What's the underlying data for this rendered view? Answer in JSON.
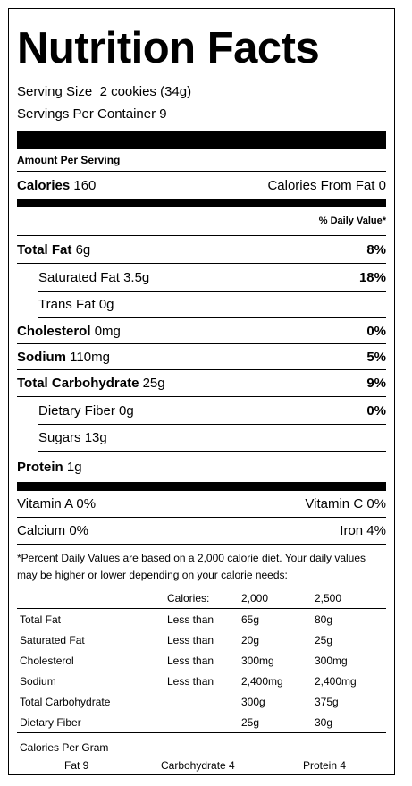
{
  "title": "Nutrition Facts",
  "serving_size_label": "Serving Size",
  "serving_size_value": "2 cookies (34g)",
  "servings_label": "Servings Per Container",
  "servings_value": "9",
  "amount_per_serving": "Amount Per Serving",
  "calories_label": "Calories",
  "calories_value": "160",
  "calories_from_fat_label": "Calories From Fat",
  "calories_from_fat_value": "0",
  "daily_value_header": "% Daily Value*",
  "nutrients": [
    {
      "label": "Total Fat",
      "amount": "6g",
      "dv": "8%"
    },
    {
      "label": "Saturated Fat",
      "amount": "3.5g",
      "dv": "18%"
    },
    {
      "label": "Trans Fat",
      "amount": "0g",
      "dv": ""
    },
    {
      "label": "Cholesterol",
      "amount": "0mg",
      "dv": "0%"
    },
    {
      "label": "Sodium",
      "amount": "110mg",
      "dv": "5%"
    },
    {
      "label": "Total Carbohydrate",
      "amount": "25g",
      "dv": "9%"
    },
    {
      "label": "Dietary Fiber",
      "amount": "0g",
      "dv": "0%"
    },
    {
      "label": "Sugars",
      "amount": "13g",
      "dv": ""
    },
    {
      "label": "Protein",
      "amount": "1g",
      "dv": ""
    }
  ],
  "vitamins": [
    {
      "left": "Vitamin A 0%",
      "right": "Vitamin C 0%"
    },
    {
      "left": "Calcium 0%",
      "right": "Iron 4%"
    }
  ],
  "footnote": "*Percent Daily Values are based on a 2,000 calorie diet. Your daily values may be higher or lower depending on your calorie needs:",
  "footnote_table": {
    "header": [
      "",
      "Calories:",
      "2,000",
      "2,500"
    ],
    "rows": [
      [
        "Total Fat",
        "Less than",
        "65g",
        "80g"
      ],
      [
        "Saturated Fat",
        "Less than",
        "20g",
        "25g"
      ],
      [
        "Cholesterol",
        "Less than",
        "300mg",
        "300mg"
      ],
      [
        "Sodium",
        "Less than",
        "2,400mg",
        "2,400mg"
      ],
      [
        "Total Carbohydrate",
        "",
        "300g",
        "375g"
      ],
      [
        "Dietary Fiber",
        "",
        "25g",
        "30g"
      ]
    ]
  },
  "calories_per_gram_label": "Calories Per Gram",
  "calories_per_gram": [
    "Fat 9",
    "Carbohydrate 4",
    "Protein 4"
  ]
}
